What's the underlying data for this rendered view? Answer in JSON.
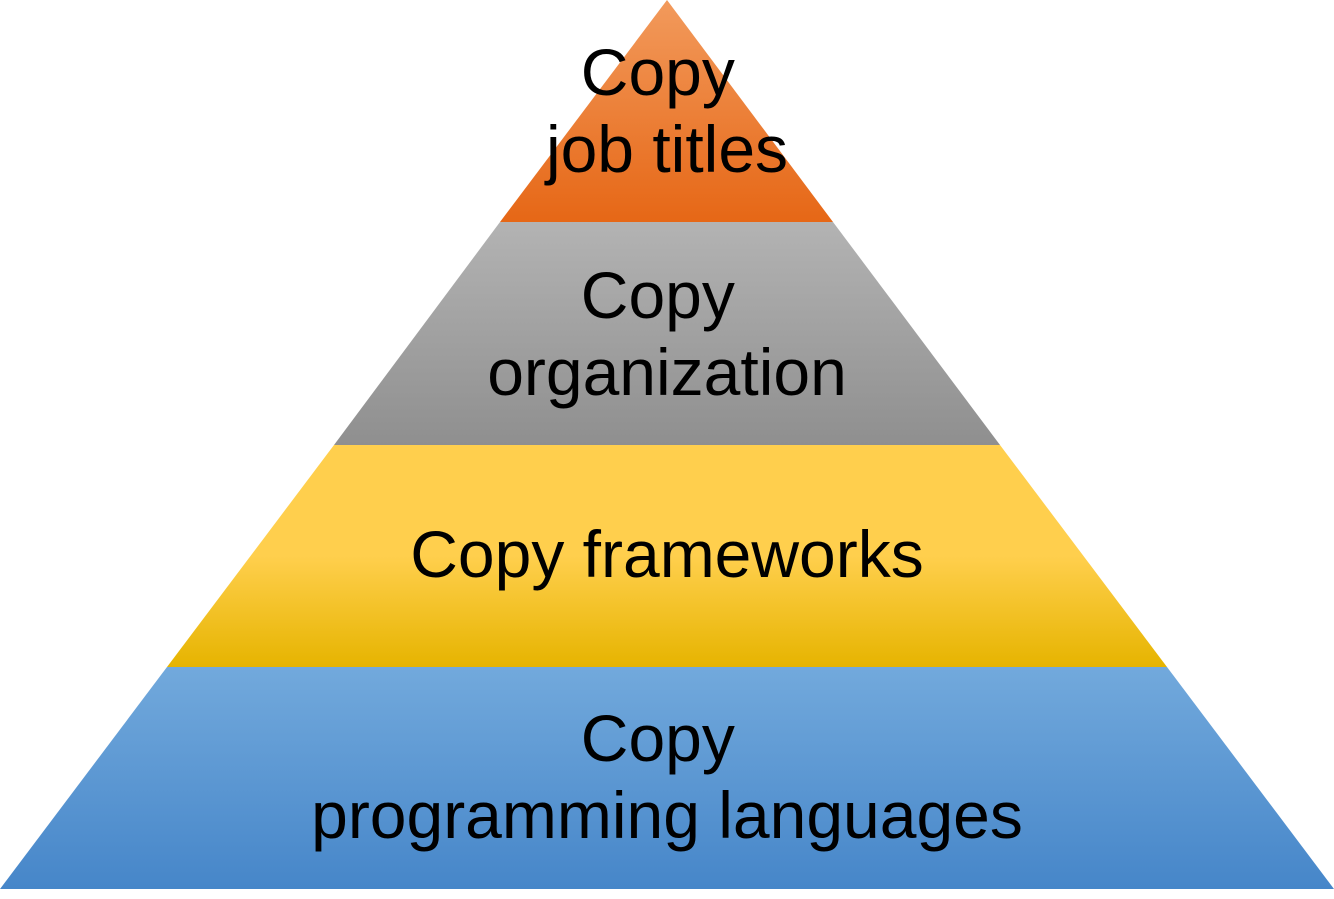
{
  "pyramid": {
    "tiers": [
      {
        "name": "job-titles",
        "lines": [
          "Copy",
          "job titles"
        ],
        "colors": {
          "top": "#f29a5c",
          "bottom": "#e66716"
        }
      },
      {
        "name": "organization",
        "lines": [
          "Copy",
          "organization"
        ],
        "colors": {
          "top": "#b3b3b3",
          "bottom": "#8f8f8f"
        }
      },
      {
        "name": "frameworks",
        "lines": [
          "Copy frameworks"
        ],
        "colors": {
          "top": "#ffcf4d",
          "bottom": "#e6b400"
        }
      },
      {
        "name": "programming-languages",
        "lines": [
          "Copy",
          "programming languages"
        ],
        "colors": {
          "top": "#72a9dc",
          "bottom": "#4686c9"
        }
      }
    ]
  }
}
